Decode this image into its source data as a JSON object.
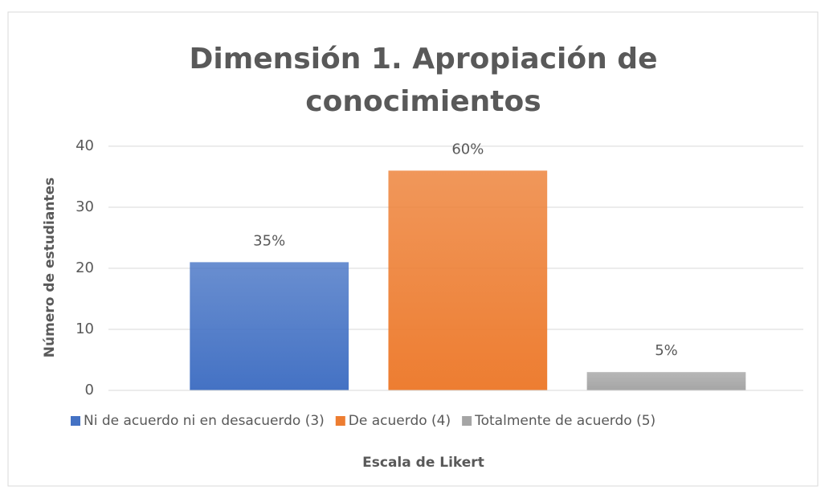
{
  "chart_data": {
    "type": "bar",
    "title": [
      "Dimensión 1. Apropiación de",
      "conocimientos"
    ],
    "xlabel": "Escala de Likert",
    "ylabel": "Número de estudiantes",
    "categories": [
      null
    ],
    "series": [
      {
        "name": "Ni de acuerdo ni en desacuerdo (3)",
        "color": "#4472c4",
        "values": [
          21
        ],
        "data_labels": [
          "35%"
        ]
      },
      {
        "name": "De acuerdo (4)",
        "color": "#ed7d31",
        "values": [
          36
        ],
        "data_labels": [
          "60%"
        ]
      },
      {
        "name": "Totalmente de acuerdo (5)",
        "color": "#a5a5a5",
        "values": [
          3
        ],
        "data_labels": [
          "5%"
        ]
      }
    ],
    "ylim": [
      0,
      40
    ],
    "yticks": [
      0,
      10,
      20,
      30,
      40
    ],
    "grid": true,
    "legend": "bottom"
  }
}
